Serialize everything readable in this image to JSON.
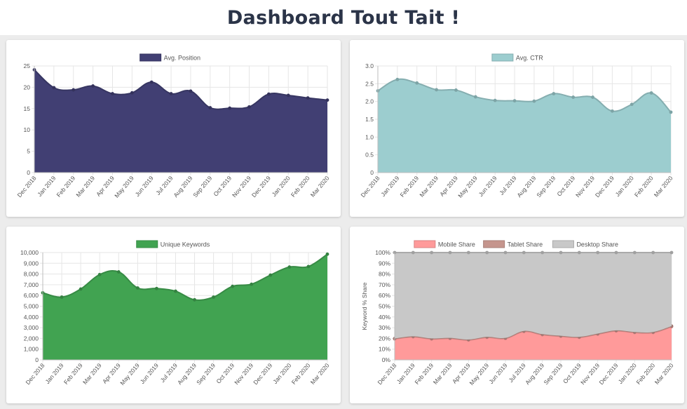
{
  "header": {
    "title": "Dashboard Tout Tait !"
  },
  "chart_data": [
    {
      "type": "area",
      "categories": [
        "Dec 2018",
        "Jan 2019",
        "Feb 2019",
        "Mar 2019",
        "Apr 2019",
        "May 2019",
        "Jun 2019",
        "Jul 2019",
        "Aug 2019",
        "Sep 2019",
        "Oct 2019",
        "Nov 2019",
        "Dec 2019",
        "Jan 2020",
        "Feb 2020",
        "Mar 2020"
      ],
      "series": [
        {
          "name": "Avg. Position",
          "color": "#413f73",
          "values": [
            24.1,
            19.9,
            19.4,
            20.3,
            18.5,
            18.7,
            21.2,
            18.5,
            19.1,
            15.2,
            15.1,
            15.4,
            18.4,
            18.1,
            17.5,
            17.0
          ]
        }
      ],
      "ylim": [
        0,
        25
      ],
      "yticks": [
        "0",
        "5",
        "10",
        "15",
        "20",
        "25"
      ],
      "ylabel": "",
      "grid": true,
      "legend": "top-center",
      "title": ""
    },
    {
      "type": "area",
      "categories": [
        "Dec 2018",
        "Jan 2019",
        "Feb 2019",
        "Mar 2019",
        "Apr 2019",
        "May 2019",
        "Jun 2019",
        "Jul 2019",
        "Aug 2019",
        "Sep 2019",
        "Oct 2019",
        "Nov 2019",
        "Dec 2019",
        "Jan 2020",
        "Feb 2020",
        "Mar 2020"
      ],
      "series": [
        {
          "name": "Avg. CTR",
          "color": "#9ccdcf",
          "values": [
            2.3,
            2.62,
            2.52,
            2.33,
            2.32,
            2.13,
            2.03,
            2.02,
            2.01,
            2.22,
            2.12,
            2.12,
            1.73,
            1.92,
            2.24,
            1.7
          ]
        }
      ],
      "ylim": [
        0,
        3
      ],
      "yticks": [
        "0",
        "0.5",
        "1.0",
        "1.5",
        "2.0",
        "2.5",
        "3.0"
      ],
      "ylabel": "",
      "grid": true,
      "legend": "top-center",
      "title": ""
    },
    {
      "type": "area",
      "categories": [
        "Dec 2018",
        "Jan 2019",
        "Feb 2019",
        "Mar 2019",
        "Apr 2019",
        "May 2019",
        "Jun 2019",
        "Jul 2019",
        "Aug 2019",
        "Sep 2019",
        "Oct 2019",
        "Nov 2019",
        "Dec 2019",
        "Jan 2020",
        "Feb 2020",
        "Mar 2020"
      ],
      "series": [
        {
          "name": "Unique Keywords",
          "color": "#41a351",
          "values": [
            6250,
            5850,
            6600,
            7950,
            8200,
            6700,
            6650,
            6400,
            5600,
            5850,
            6850,
            7050,
            7900,
            8650,
            8700,
            9850
          ]
        }
      ],
      "ylim": [
        0,
        10000
      ],
      "yticks": [
        "0",
        "1,000",
        "2,000",
        "3,000",
        "4,000",
        "5,000",
        "6,000",
        "7,000",
        "8,000",
        "9,000",
        "10,000"
      ],
      "ylabel": "",
      "grid": true,
      "legend": "top-center",
      "title": ""
    },
    {
      "type": "area",
      "stacked": true,
      "categories": [
        "Dec 2018",
        "Jan 2019",
        "Feb 2019",
        "Mar 2019",
        "Apr 2019",
        "May 2019",
        "Jun 2019",
        "Jul 2019",
        "Aug 2019",
        "Sep 2019",
        "Oct 2019",
        "Nov 2019",
        "Dec 2019",
        "Jan 2020",
        "Feb 2020",
        "Mar 2020"
      ],
      "series": [
        {
          "name": "Mobile Share",
          "color": "#ff9a9a",
          "values": [
            19.5,
            21.5,
            19.5,
            20.0,
            18.5,
            21.0,
            20.0,
            26.5,
            23.5,
            22.0,
            21.0,
            24.0,
            27.0,
            25.5,
            25.5,
            31.0
          ]
        },
        {
          "name": "Tablet Share",
          "color": "#c5958d",
          "values": [
            0.5,
            0.5,
            0.5,
            0.5,
            0.5,
            0.5,
            0.5,
            0.5,
            0.5,
            0.5,
            0.5,
            0.5,
            0.5,
            0.5,
            0.5,
            0.5
          ]
        },
        {
          "name": "Desktop Share",
          "color": "#c8c8c8",
          "values": [
            80.0,
            78.0,
            80.0,
            79.5,
            81.0,
            78.5,
            79.5,
            73.0,
            76.0,
            77.5,
            78.5,
            75.5,
            72.5,
            74.0,
            74.0,
            68.5
          ]
        }
      ],
      "ylim": [
        0,
        100
      ],
      "yticks": [
        "0%",
        "10%",
        "20%",
        "30%",
        "40%",
        "50%",
        "60%",
        "70%",
        "80%",
        "90%",
        "100%"
      ],
      "ylabel": "Keyword % Share",
      "grid": true,
      "legend": "top-center",
      "title": ""
    }
  ]
}
